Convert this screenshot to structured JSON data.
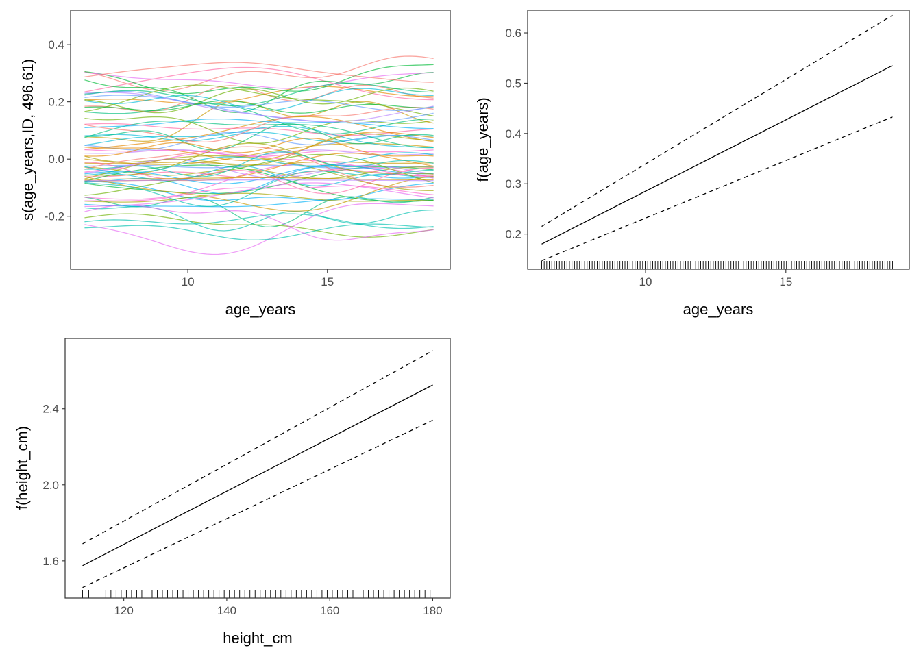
{
  "chart_data": [
    {
      "id": "smooths",
      "type": "line",
      "xlabel": "age_years",
      "ylabel": "s(age_years,ID, 496.61)",
      "xlim": [
        5.8,
        19.4
      ],
      "ylim": [
        -0.385,
        0.52
      ],
      "xticks": [
        10,
        15
      ],
      "yticks": [
        -0.2,
        0.0,
        0.2,
        0.4
      ],
      "ytick_labels": [
        "-0.2",
        "0.0",
        "0.2",
        "0.4"
      ],
      "x_range": [
        6.3,
        18.8
      ],
      "grid": false,
      "legend": "none",
      "n_series": 70
    },
    {
      "id": "age",
      "type": "line",
      "xlabel": "age_years",
      "ylabel": "f(age_years)",
      "xlim": [
        5.8,
        19.4
      ],
      "ylim": [
        0.13,
        0.645
      ],
      "xticks": [
        10,
        15
      ],
      "yticks": [
        0.2,
        0.3,
        0.4,
        0.5,
        0.6
      ],
      "ytick_labels": [
        "0.2",
        "0.3",
        "0.4",
        "0.5",
        "0.6"
      ],
      "grid": false,
      "series": [
        {
          "style": "solid",
          "x": [
            6.3,
            18.8
          ],
          "y": [
            0.18,
            0.535
          ]
        },
        {
          "style": "dashed",
          "x": [
            6.3,
            18.8
          ],
          "y": [
            0.215,
            0.635
          ]
        },
        {
          "style": "dashed",
          "x": [
            6.3,
            18.8
          ],
          "y": [
            0.147,
            0.433
          ]
        }
      ],
      "rug": {
        "from": 6.3,
        "to": 18.8,
        "n": 140
      }
    },
    {
      "id": "height",
      "type": "line",
      "xlabel": "height_cm",
      "ylabel": "f(height_cm)",
      "xlim": [
        108.6,
        183.4
      ],
      "ylim": [
        1.405,
        2.77
      ],
      "xticks": [
        120,
        140,
        160,
        180
      ],
      "yticks": [
        1.6,
        2.0,
        2.4
      ],
      "ytick_labels": [
        "1.6",
        "2.0",
        "2.4"
      ],
      "grid": false,
      "series": [
        {
          "style": "solid",
          "x": [
            112,
            180
          ],
          "y": [
            1.575,
            2.525
          ]
        },
        {
          "style": "dashed",
          "x": [
            112,
            180
          ],
          "y": [
            1.69,
            2.705
          ]
        },
        {
          "style": "dashed",
          "x": [
            112,
            180
          ],
          "y": [
            1.46,
            2.34
          ]
        }
      ],
      "rug": {
        "values": [
          112,
          113.2,
          116.5,
          117.5,
          118.5,
          119.5,
          120.5,
          121.5,
          122.5,
          123.5,
          124.5,
          125.5,
          126.5,
          127.5,
          128.5,
          129.5,
          130.5,
          131.5,
          132.5,
          133.5,
          134.5,
          135.5,
          136.5,
          137.5,
          138.5,
          139.5,
          140.5,
          141.5,
          142.5,
          143.5,
          144.5,
          145.5,
          146.5,
          147.5,
          148.5,
          149.5,
          150.5,
          151.5,
          152.5,
          153.5,
          154.5,
          155.5,
          156.5,
          157.5,
          158.5,
          159.5,
          160.5,
          161.5,
          162.5,
          163.5,
          164.5,
          165.5,
          166.5,
          167.5,
          168.5,
          169.5,
          170.5,
          171.5,
          172.5,
          173.5,
          174.5,
          175.5,
          176.5,
          177.5,
          178.5,
          179.5
        ]
      }
    }
  ]
}
